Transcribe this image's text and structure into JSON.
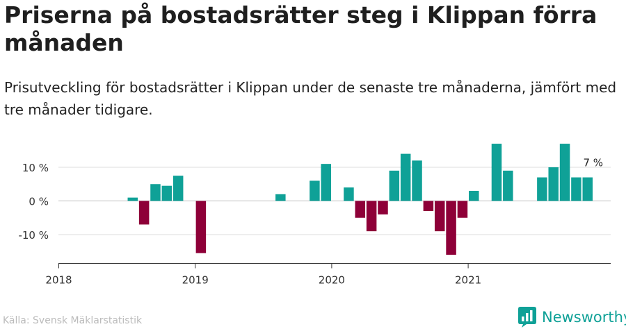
{
  "title": "Priserna på bostadsrätter steg i Klippan förra månaden",
  "subtitle": "Prisutveckling för bostadsrätter i Klippan under de senaste tre månaderna, jämfört med tre månader tidigare.",
  "source": "Källa: Svensk Mäklarstatistik",
  "brand": "Newsworthy",
  "colors": {
    "positive": "#0fa197",
    "negative": "#8e0038",
    "brand": "#0fa197"
  },
  "chart_data": {
    "type": "bar",
    "start": "2018-01",
    "month_labels": [
      "2018-01",
      "2018-02",
      "2018-03",
      "2018-04",
      "2018-05",
      "2018-06",
      "2018-07",
      "2018-08",
      "2018-09",
      "2018-10",
      "2018-11",
      "2018-12",
      "2019-01",
      "2019-02",
      "2019-03",
      "2019-04",
      "2019-05",
      "2019-06",
      "2019-07",
      "2019-08",
      "2019-09",
      "2019-10",
      "2019-11",
      "2019-12",
      "2020-01",
      "2020-02",
      "2020-03",
      "2020-04",
      "2020-05",
      "2020-06",
      "2020-07",
      "2020-08",
      "2020-09",
      "2020-10",
      "2020-11",
      "2020-12",
      "2021-01",
      "2021-02",
      "2021-03",
      "2021-04",
      "2021-05",
      "2021-06",
      "2021-07",
      "2021-08",
      "2021-09",
      "2021-10",
      "2021-11",
      "2021-12"
    ],
    "values": [
      null,
      null,
      null,
      null,
      null,
      null,
      1,
      -7,
      5,
      4.5,
      7.5,
      null,
      -15.5,
      null,
      null,
      null,
      null,
      null,
      null,
      2,
      null,
      null,
      6,
      11,
      null,
      4,
      -5,
      -9,
      -4,
      9,
      14,
      12,
      -3,
      -9,
      -16,
      -5,
      3,
      null,
      17,
      9,
      null,
      null,
      7,
      10,
      17,
      7,
      7,
      null
    ],
    "x_ticks": [
      "2018",
      "2019",
      "2020",
      "2021"
    ],
    "y_ticks": [
      "10 %",
      "0 %",
      "-10 %"
    ],
    "y_tick_values": [
      10,
      0,
      -10
    ],
    "ylim": [
      -18,
      18
    ],
    "annotation": {
      "index": 46,
      "text": "7 %"
    },
    "xlabel": "",
    "ylabel": ""
  }
}
